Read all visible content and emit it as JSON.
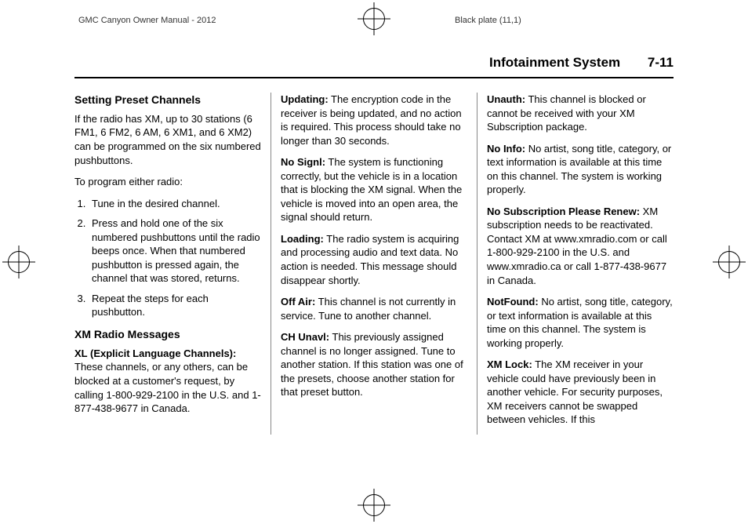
{
  "top_header": {
    "left": "GMC Canyon Owner Manual - 2012",
    "right": "Black plate (11,1)"
  },
  "page_header": {
    "chapter": "Infotainment System",
    "page": "7-11"
  },
  "col1": {
    "h1": "Setting Preset Channels",
    "p1": "If the radio has XM, up to 30 stations (6 FM1, 6 FM2, 6 AM, 6 XM1, and 6 XM2) can be programmed on the six numbered pushbuttons.",
    "p2": "To program either radio:",
    "li1": "Tune in the desired channel.",
    "li2": "Press and hold one of the six numbered pushbuttons until the radio beeps once. When that numbered pushbutton is pressed again, the channel that was stored, returns.",
    "li3": "Repeat the steps for each pushbutton.",
    "h2": "XM Radio Messages",
    "xl_label": "XL (Explicit Language Channels):",
    "xl_text": "  These channels, or any others, can be blocked at a customer's request, by calling 1-800-929-2100 in the U.S. and 1-877-438-9677 in Canada."
  },
  "col2": {
    "updating_label": "Updating:",
    "updating_text": "  The encryption code in the receiver is being updated, and no action is required. This process should take no longer than 30 seconds.",
    "nosignl_label": "No Signl:",
    "nosignl_text": "  The system is functioning correctly, but the vehicle is in a location that is blocking the XM signal. When the vehicle is moved into an open area, the signal should return.",
    "loading_label": "Loading:",
    "loading_text": "  The radio system is acquiring and processing audio and text data. No action is needed. This message should disappear shortly.",
    "offair_label": "Off Air:",
    "offair_text": "  This channel is not currently in service. Tune to another channel.",
    "chunavl_label": "CH Unavl:",
    "chunavl_text": "  This previously assigned channel is no longer assigned. Tune to another station. If this station was one of the presets, choose another station for that preset button."
  },
  "col3": {
    "unauth_label": "Unauth:",
    "unauth_text": "  This channel is blocked or cannot be received with your XM Subscription package.",
    "noinfo_label": "No Info:",
    "noinfo_text": "  No artist, song title, category, or text information is available at this time on this channel. The system is working properly.",
    "nosub_label": "No Subscription Please Renew:",
    "nosub_text": " XM subscription needs to be reactivated. Contact XM at www.xmradio.com or call 1-800-929-2100 in the U.S. and www.xmradio.ca or call 1-877-438-9677 in Canada.",
    "notfound_label": "NotFound:",
    "notfound_text": "   No artist, song title, category, or text information is available at this time on this channel. The system is working properly.",
    "xmlock_label": "XM Lock:",
    "xmlock_text": "  The XM receiver in your vehicle could have previously been in another vehicle. For security purposes, XM receivers cannot be swapped between vehicles. If this"
  }
}
